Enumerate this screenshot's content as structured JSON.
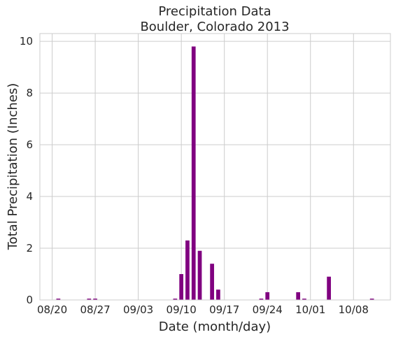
{
  "chart_data": {
    "type": "bar",
    "title": "Precipitation Data",
    "subtitle": "Boulder, Colorado 2013",
    "xlabel": "Date (month/day)",
    "ylabel": "Total Precipitation (Inches)",
    "bar_color": "#800080",
    "grid": true,
    "x_ticks": [
      "08/20",
      "08/27",
      "09/03",
      "09/10",
      "09/17",
      "09/24",
      "10/01",
      "10/08"
    ],
    "x_range": [
      "2013-08-18",
      "2013-10-14"
    ],
    "ylim": [
      0,
      10.3
    ],
    "y_ticks": [
      0,
      2,
      4,
      6,
      8,
      10
    ],
    "data": [
      {
        "date": "2013-08-21",
        "value": 0.05
      },
      {
        "date": "2013-08-26",
        "value": 0.05
      },
      {
        "date": "2013-08-27",
        "value": 0.05
      },
      {
        "date": "2013-09-09",
        "value": 0.05
      },
      {
        "date": "2013-09-10",
        "value": 1.0
      },
      {
        "date": "2013-09-11",
        "value": 2.3
      },
      {
        "date": "2013-09-12",
        "value": 9.8
      },
      {
        "date": "2013-09-13",
        "value": 1.9
      },
      {
        "date": "2013-09-15",
        "value": 1.4
      },
      {
        "date": "2013-09-16",
        "value": 0.4
      },
      {
        "date": "2013-09-23",
        "value": 0.05
      },
      {
        "date": "2013-09-24",
        "value": 0.3
      },
      {
        "date": "2013-09-29",
        "value": 0.3
      },
      {
        "date": "2013-09-30",
        "value": 0.05
      },
      {
        "date": "2013-10-04",
        "value": 0.9
      },
      {
        "date": "2013-10-11",
        "value": 0.05
      }
    ]
  }
}
